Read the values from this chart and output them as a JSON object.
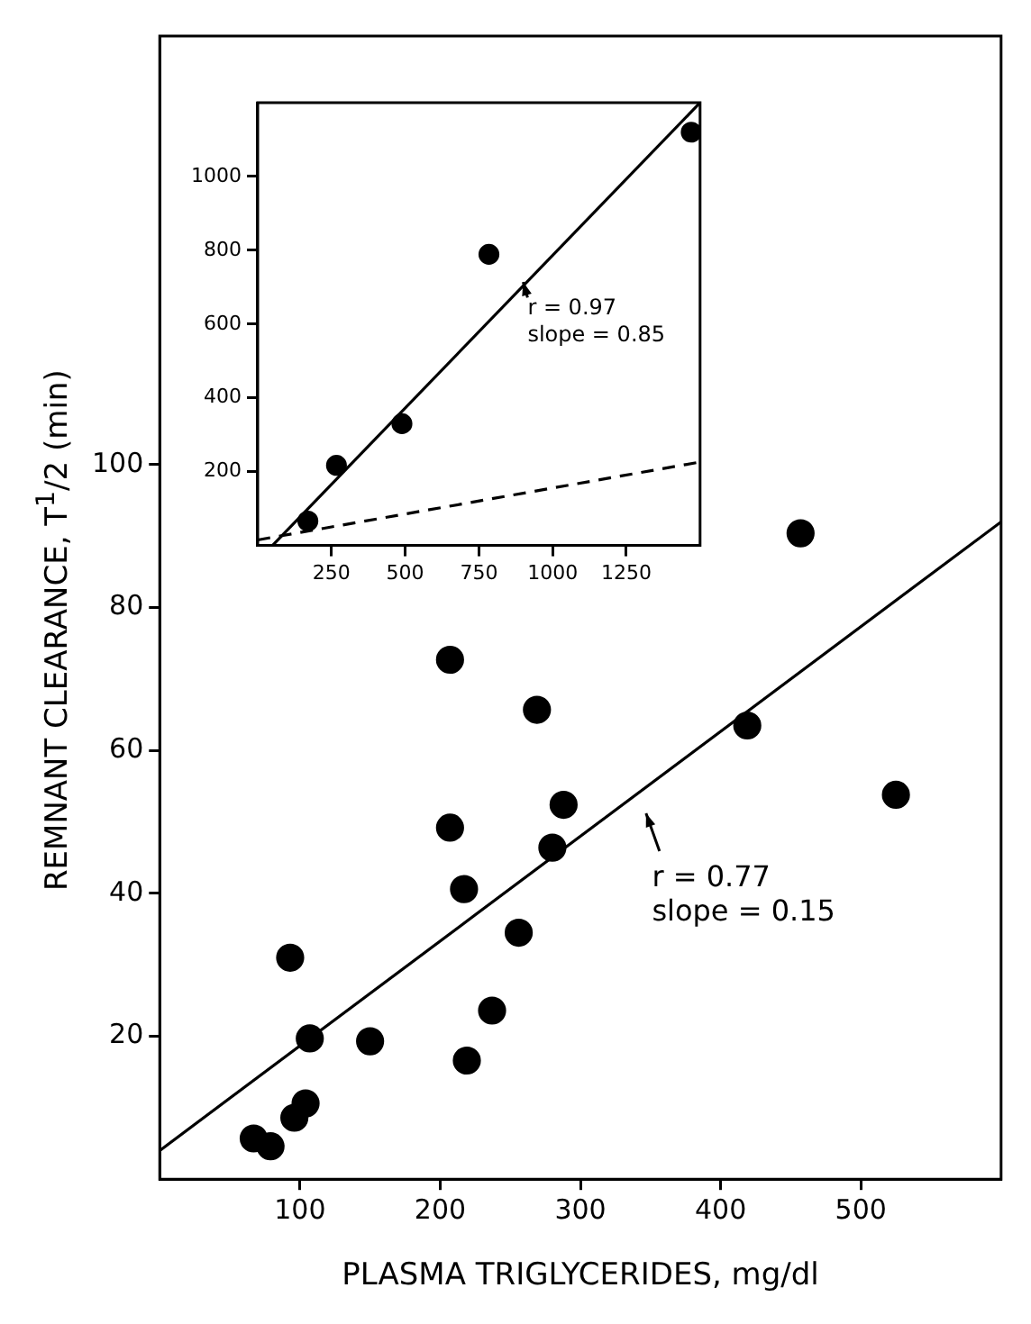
{
  "chart_data": [
    {
      "type": "scatter",
      "xlabel": "PLASMA TRIGLYCERIDES, mg/dl",
      "ylabel": "REMNANT CLEARANCE, T$^{1}$/2 (min)",
      "xlim": [
        0,
        600
      ],
      "ylim": [
        0,
        160
      ],
      "xticks": [
        100,
        200,
        300,
        400,
        500
      ],
      "yticks": [
        20,
        40,
        60,
        80,
        100
      ],
      "grid": false,
      "legend": false,
      "marker": "circle",
      "series": [
        {
          "type": "scatter",
          "color": "#000000",
          "x": [
            67,
            79,
            96,
            104,
            93,
            107,
            150,
            207,
            207,
            217,
            219,
            237,
            256,
            269,
            280,
            288,
            419,
            457,
            525
          ],
          "values": [
            5.7,
            4.6,
            8.6,
            10.6,
            31,
            19.7,
            19.3,
            72.7,
            49.2,
            40.6,
            16.6,
            23.6,
            34.5,
            65.7,
            46.4,
            52.4,
            63.5,
            90.4,
            53.8
          ]
        },
        {
          "type": "line",
          "color": "#000000",
          "marker": "none",
          "line_style": "solid",
          "x": [
            0,
            600
          ],
          "values": [
            4,
            92
          ]
        }
      ],
      "annotations": [
        "r = 0.77\nslope = 0.15"
      ]
    },
    {
      "type": "scatter",
      "xlim": [
        0,
        1500
      ],
      "ylim": [
        0,
        1200
      ],
      "xticks": [
        250,
        500,
        750,
        1000,
        1250
      ],
      "yticks": [
        200,
        400,
        600,
        800,
        1000
      ],
      "grid": false,
      "legend": false,
      "marker": "circle",
      "series": [
        {
          "type": "scatter",
          "color": "#000000",
          "x": [
            170,
            267,
            489,
            784,
            1470
          ],
          "values": [
            66,
            217,
            330,
            789,
            1120
          ]
        },
        {
          "type": "line",
          "color": "#000000",
          "marker": "none",
          "line_style": "solid",
          "x": [
            50,
            1500
          ],
          "values": [
            0,
            1200
          ]
        },
        {
          "type": "line",
          "color": "#000000",
          "marker": "none",
          "line_style": "dashed",
          "x": [
            0,
            1500
          ],
          "values": [
            15,
            226
          ]
        }
      ],
      "annotations": [
        "r = 0.97\nslope = 0.85"
      ]
    }
  ]
}
